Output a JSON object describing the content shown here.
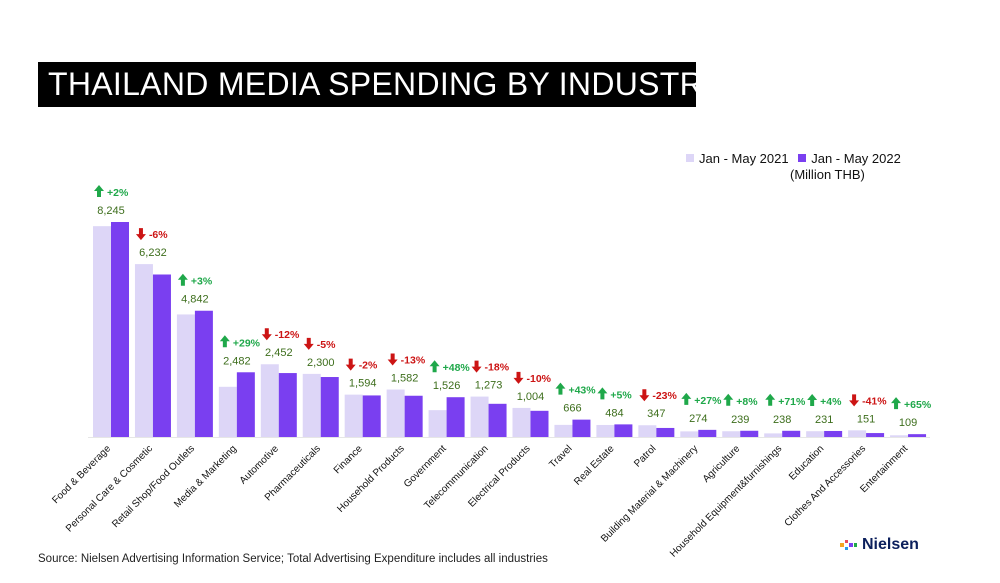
{
  "title": "THAILAND MEDIA SPENDING BY INDUSTRY",
  "legend": {
    "items": [
      {
        "label": "Jan - May 2021",
        "color": "#ddd6f7"
      },
      {
        "label": "Jan - May 2022",
        "color": "#7a3ff0"
      }
    ],
    "unit": "(Million THB)"
  },
  "source": "Source: Nielsen Advertising Information Service; Total Advertising Expenditure includes all industries",
  "logo": {
    "text": "Nielsen",
    "icon": "nielsen-logo-icon"
  },
  "colors": {
    "up": "#1fa84a",
    "down": "#cc1414",
    "value_label": "#3d6e1c",
    "series_2021": "#ddd6f7",
    "series_2022": "#7a3ff0"
  },
  "chart_data": {
    "type": "bar",
    "categories": [
      "Food & Beverage",
      "Personal Care & Cosmetic",
      "Retail Shop/Food Outlets",
      "Media & Marketing",
      "Automotive",
      "Pharmaceuticals",
      "Finance",
      "Household Products",
      "Government",
      "Telecommunication",
      "Electrical Products",
      "Travel",
      "Real Estate",
      "Patrol",
      "Building Material & Machinery",
      "Agriculture",
      "Household Equipment&furnishings",
      "Education",
      "Clothes And Accessories",
      "Entertainment"
    ],
    "series": [
      {
        "name": "Jan - May 2021",
        "values": [
          8085,
          6630,
          4700,
          1925,
          2790,
          2420,
          1625,
          1820,
          1030,
          1550,
          1115,
          465,
          461,
          451,
          216,
          221,
          139,
          222,
          256,
          66
        ]
      },
      {
        "name": "Jan - May 2022",
        "values": [
          8245,
          6232,
          4842,
          2482,
          2452,
          2300,
          1594,
          1582,
          1526,
          1273,
          1004,
          666,
          484,
          347,
          274,
          239,
          238,
          231,
          151,
          109
        ]
      }
    ],
    "value_labels": [
      "8,245",
      "6,232",
      "4,842",
      "2,482",
      "2,452",
      "2,300",
      "1,594",
      "1,582",
      "1,526",
      "1,273",
      "1,004",
      "666",
      "484",
      "347",
      "274",
      "239",
      "238",
      "231",
      "151",
      "109"
    ],
    "changes": [
      "+2%",
      "-6%",
      "+3%",
      "+29%",
      "-12%",
      "-5%",
      "-2%",
      "-13%",
      "+48%",
      "-18%",
      "-10%",
      "+43%",
      "+5%",
      "-23%",
      "+27%",
      "+8%",
      "+71%",
      "+4%",
      "-41%",
      "+65%"
    ],
    "change_direction": [
      "up",
      "down",
      "up",
      "up",
      "down",
      "down",
      "down",
      "down",
      "up",
      "down",
      "down",
      "up",
      "up",
      "down",
      "up",
      "up",
      "up",
      "up",
      "down",
      "up"
    ],
    "ylim": [
      0,
      8245
    ],
    "grid": false,
    "legend_position": "top-right"
  }
}
